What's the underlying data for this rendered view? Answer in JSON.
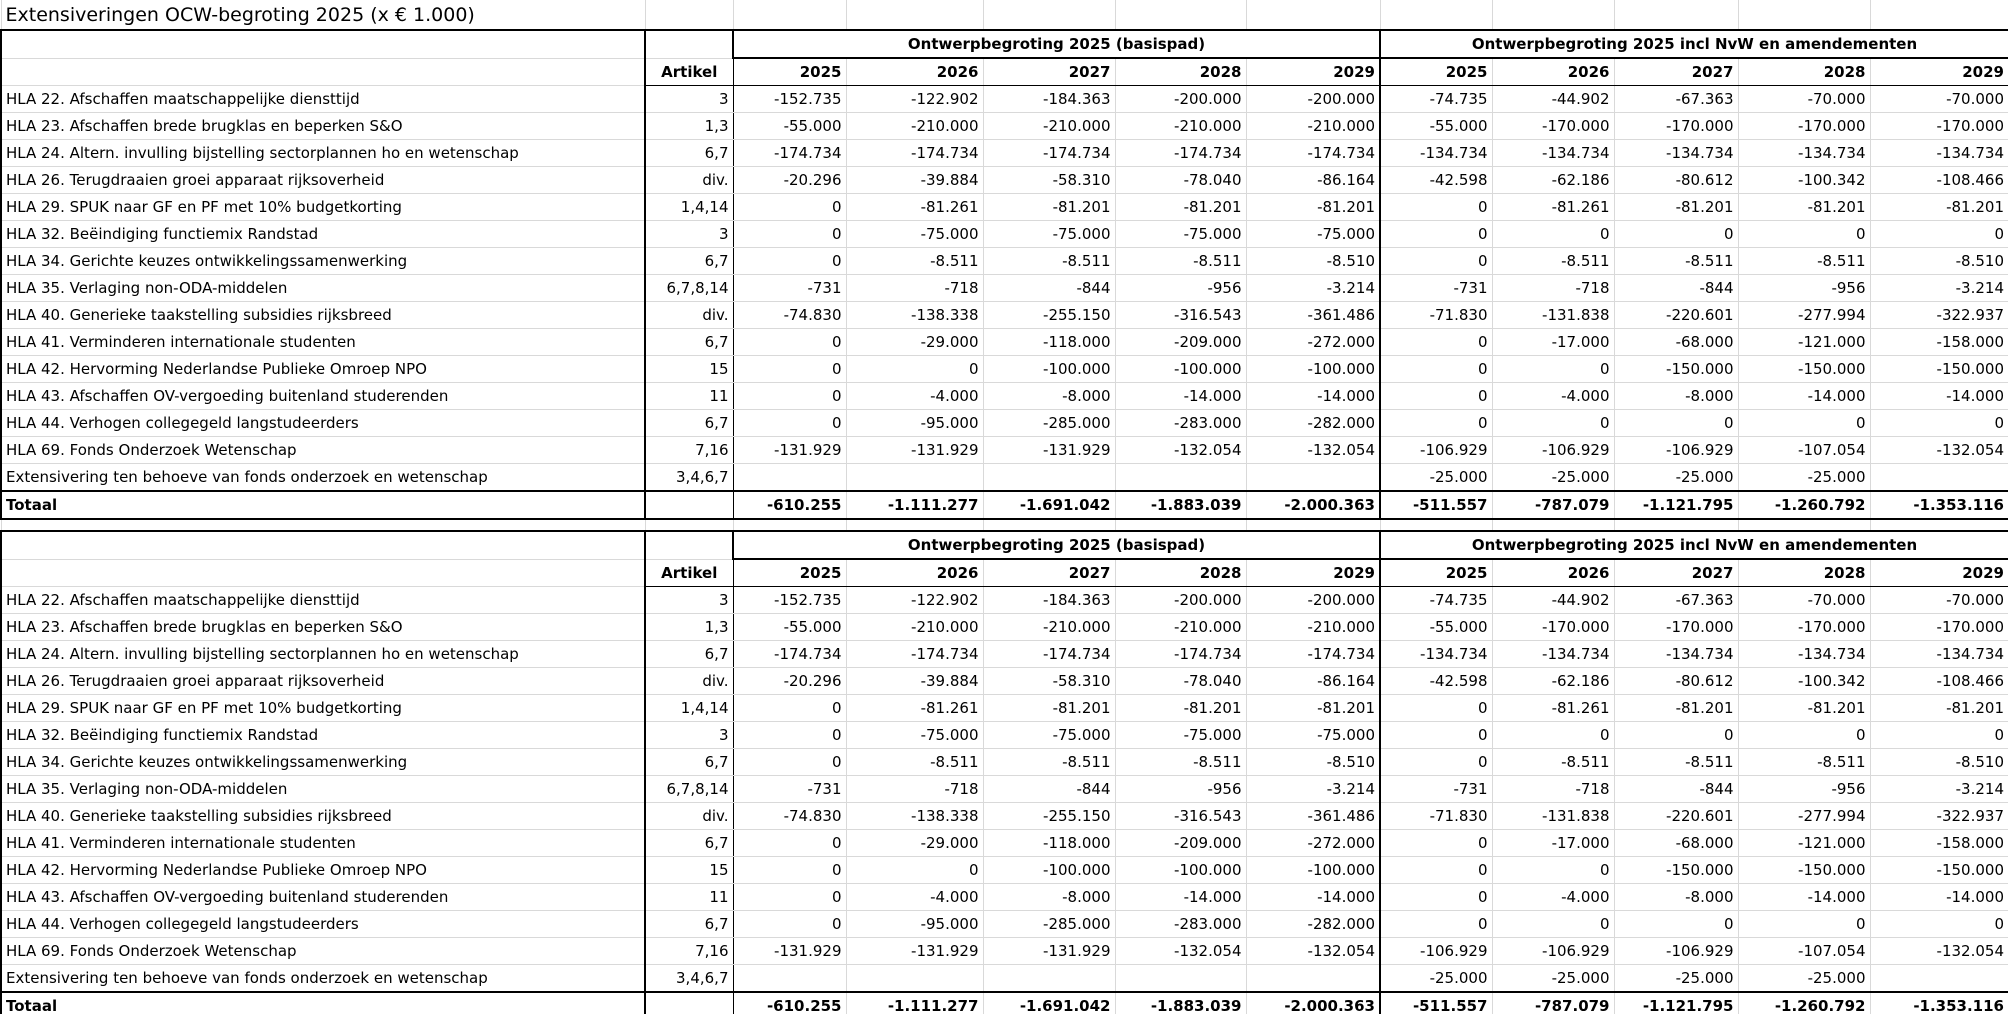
{
  "title": "Extensiveringen OCW-begroting 2025 (x € 1.000)",
  "tables": [
    {
      "group_headers": [
        "Ontwerpbegroting 2025 (basispad)",
        "Ontwerpbegroting 2025 incl NvW en amendementen"
      ],
      "columns": [
        "Artikel",
        "2025",
        "2026",
        "2027",
        "2028",
        "2029",
        "2025",
        "2026",
        "2027",
        "2028",
        "2029"
      ],
      "rows": [
        [
          "HLA 22. Afschaffen maatschappelijke diensttijd",
          "3",
          "-152.735",
          "-122.902",
          "-184.363",
          "-200.000",
          "-200.000",
          "-74.735",
          "-44.902",
          "-67.363",
          "-70.000",
          "-70.000"
        ],
        [
          "HLA 23. Afschaffen brede brugklas en beperken S&O",
          "1,3",
          "-55.000",
          "-210.000",
          "-210.000",
          "-210.000",
          "-210.000",
          "-55.000",
          "-170.000",
          "-170.000",
          "-170.000",
          "-170.000"
        ],
        [
          "HLA 24. Altern. invulling bijstelling sectorplannen ho en wetenschap",
          "6,7",
          "-174.734",
          "-174.734",
          "-174.734",
          "-174.734",
          "-174.734",
          "-134.734",
          "-134.734",
          "-134.734",
          "-134.734",
          "-134.734"
        ],
        [
          "HLA 26. Terugdraaien groei apparaat rijksoverheid",
          "div.",
          "-20.296",
          "-39.884",
          "-58.310",
          "-78.040",
          "-86.164",
          "-42.598",
          "-62.186",
          "-80.612",
          "-100.342",
          "-108.466"
        ],
        [
          "HLA 29. SPUK naar GF en PF met 10% budgetkorting",
          "1,4,14",
          "0",
          "-81.261",
          "-81.201",
          "-81.201",
          "-81.201",
          "0",
          "-81.261",
          "-81.201",
          "-81.201",
          "-81.201"
        ],
        [
          "HLA 32. Beëindiging functiemix Randstad",
          "3",
          "0",
          "-75.000",
          "-75.000",
          "-75.000",
          "-75.000",
          "0",
          "0",
          "0",
          "0",
          "0"
        ],
        [
          "HLA 34. Gerichte keuzes ontwikkelingssamenwerking",
          "6,7",
          "0",
          "-8.511",
          "-8.511",
          "-8.511",
          "-8.510",
          "0",
          "-8.511",
          "-8.511",
          "-8.511",
          "-8.510"
        ],
        [
          "HLA 35. Verlaging non-ODA-middelen",
          "6,7,8,14",
          "-731",
          "-718",
          "-844",
          "-956",
          "-3.214",
          "-731",
          "-718",
          "-844",
          "-956",
          "-3.214"
        ],
        [
          "HLA 40. Generieke taakstelling subsidies rijksbreed",
          "div.",
          "-74.830",
          "-138.338",
          "-255.150",
          "-316.543",
          "-361.486",
          "-71.830",
          "-131.838",
          "-220.601",
          "-277.994",
          "-322.937"
        ],
        [
          "HLA 41. Verminderen internationale studenten",
          "6,7",
          "0",
          "-29.000",
          "-118.000",
          "-209.000",
          "-272.000",
          "0",
          "-17.000",
          "-68.000",
          "-121.000",
          "-158.000"
        ],
        [
          "HLA 42. Hervorming Nederlandse Publieke Omroep NPO",
          "15",
          "0",
          "0",
          "-100.000",
          "-100.000",
          "-100.000",
          "0",
          "0",
          "-150.000",
          "-150.000",
          "-150.000"
        ],
        [
          "HLA 43. Afschaffen OV-vergoeding buitenland studerenden",
          "11",
          "0",
          "-4.000",
          "-8.000",
          "-14.000",
          "-14.000",
          "0",
          "-4.000",
          "-8.000",
          "-14.000",
          "-14.000"
        ],
        [
          "HLA 44. Verhogen collegegeld langstudeerders",
          "6,7",
          "0",
          "-95.000",
          "-285.000",
          "-283.000",
          "-282.000",
          "0",
          "0",
          "0",
          "0",
          "0"
        ],
        [
          "HLA 69. Fonds Onderzoek Wetenschap",
          "7,16",
          "-131.929",
          "-131.929",
          "-131.929",
          "-132.054",
          "-132.054",
          "-106.929",
          "-106.929",
          "-106.929",
          "-107.054",
          "-132.054"
        ],
        [
          "Extensivering ten behoeve van fonds onderzoek en wetenschap",
          "3,4,6,7",
          null,
          null,
          null,
          null,
          null,
          "-25.000",
          "-25.000",
          "-25.000",
          "-25.000",
          null
        ]
      ],
      "total": [
        "Totaal",
        null,
        "-610.255",
        "-1.111.277",
        "-1.691.042",
        "-1.883.039",
        "-2.000.363",
        "-511.557",
        "-787.079",
        "-1.121.795",
        "-1.260.792",
        "-1.353.116"
      ]
    },
    {
      "group_headers": [
        "Ontwerpbegroting 2025 (basispad)",
        "Ontwerpbegroting 2025 incl NvW en amendementen"
      ],
      "columns": [
        "Artikel",
        "2025",
        "2026",
        "2027",
        "2028",
        "2029",
        "2025",
        "2026",
        "2027",
        "2028",
        "2029"
      ],
      "rows": [
        [
          "HLA 22. Afschaffen maatschappelijke diensttijd",
          "3",
          "-152.735",
          "-122.902",
          "-184.363",
          "-200.000",
          "-200.000",
          "-74.735",
          "-44.902",
          "-67.363",
          "-70.000",
          "-70.000"
        ],
        [
          "HLA 23. Afschaffen brede brugklas en beperken S&O",
          "1,3",
          "-55.000",
          "-210.000",
          "-210.000",
          "-210.000",
          "-210.000",
          "-55.000",
          "-170.000",
          "-170.000",
          "-170.000",
          "-170.000"
        ],
        [
          "HLA 24. Altern. invulling bijstelling sectorplannen ho en wetenschap",
          "6,7",
          "-174.734",
          "-174.734",
          "-174.734",
          "-174.734",
          "-174.734",
          "-134.734",
          "-134.734",
          "-134.734",
          "-134.734",
          "-134.734"
        ],
        [
          "HLA 26. Terugdraaien groei apparaat rijksoverheid",
          "div.",
          "-20.296",
          "-39.884",
          "-58.310",
          "-78.040",
          "-86.164",
          "-42.598",
          "-62.186",
          "-80.612",
          "-100.342",
          "-108.466"
        ],
        [
          "HLA 29. SPUK naar GF en PF met 10% budgetkorting",
          "1,4,14",
          "0",
          "-81.261",
          "-81.201",
          "-81.201",
          "-81.201",
          "0",
          "-81.261",
          "-81.201",
          "-81.201",
          "-81.201"
        ],
        [
          "HLA 32. Beëindiging functiemix Randstad",
          "3",
          "0",
          "-75.000",
          "-75.000",
          "-75.000",
          "-75.000",
          "0",
          "0",
          "0",
          "0",
          "0"
        ],
        [
          "HLA 34. Gerichte keuzes ontwikkelingssamenwerking",
          "6,7",
          "0",
          "-8.511",
          "-8.511",
          "-8.511",
          "-8.510",
          "0",
          "-8.511",
          "-8.511",
          "-8.511",
          "-8.510"
        ],
        [
          "HLA 35. Verlaging non-ODA-middelen",
          "6,7,8,14",
          "-731",
          "-718",
          "-844",
          "-956",
          "-3.214",
          "-731",
          "-718",
          "-844",
          "-956",
          "-3.214"
        ],
        [
          "HLA 40. Generieke taakstelling subsidies rijksbreed",
          "div.",
          "-74.830",
          "-138.338",
          "-255.150",
          "-316.543",
          "-361.486",
          "-71.830",
          "-131.838",
          "-220.601",
          "-277.994",
          "-322.937"
        ],
        [
          "HLA 41. Verminderen internationale studenten",
          "6,7",
          "0",
          "-29.000",
          "-118.000",
          "-209.000",
          "-272.000",
          "0",
          "-17.000",
          "-68.000",
          "-121.000",
          "-158.000"
        ],
        [
          "HLA 42. Hervorming Nederlandse Publieke Omroep NPO",
          "15",
          "0",
          "0",
          "-100.000",
          "-100.000",
          "-100.000",
          "0",
          "0",
          "-150.000",
          "-150.000",
          "-150.000"
        ],
        [
          "HLA 43. Afschaffen OV-vergoeding buitenland studerenden",
          "11",
          "0",
          "-4.000",
          "-8.000",
          "-14.000",
          "-14.000",
          "0",
          "-4.000",
          "-8.000",
          "-14.000",
          "-14.000"
        ],
        [
          "HLA 44. Verhogen collegegeld langstudeerders",
          "6,7",
          "0",
          "-95.000",
          "-285.000",
          "-283.000",
          "-282.000",
          "0",
          "0",
          "0",
          "0",
          "0"
        ],
        [
          "HLA 69. Fonds Onderzoek Wetenschap",
          "7,16",
          "-131.929",
          "-131.929",
          "-131.929",
          "-132.054",
          "-132.054",
          "-106.929",
          "-106.929",
          "-106.929",
          "-107.054",
          "-132.054"
        ],
        [
          "Extensivering ten behoeve van fonds onderzoek en wetenschap",
          "3,4,6,7",
          null,
          null,
          null,
          null,
          null,
          "-25.000",
          "-25.000",
          "-25.000",
          "-25.000",
          null
        ]
      ],
      "total": [
        "Totaal",
        null,
        "-610.255",
        "-1.111.277",
        "-1.691.042",
        "-1.883.039",
        "-2.000.363",
        "-511.557",
        "-787.079",
        "-1.121.795",
        "-1.260.792",
        "-1.353.116"
      ]
    }
  ]
}
